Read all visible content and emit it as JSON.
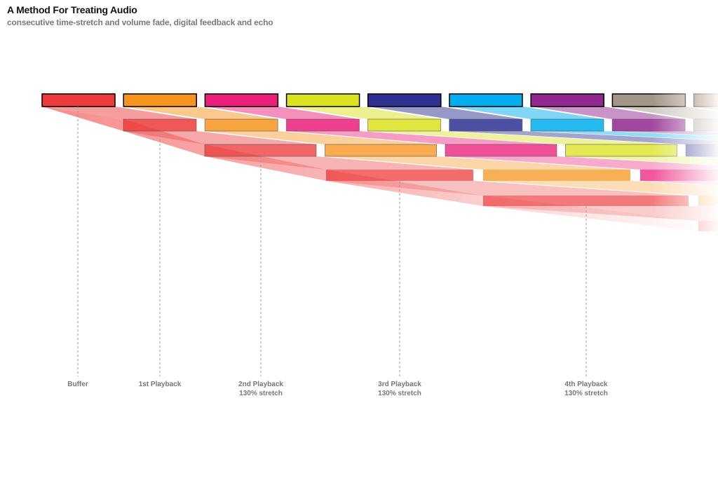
{
  "header": {
    "title": "A Method For Treating Audio",
    "subtitle": "consecutive time-stretch and volume fade, digital feedback and echo"
  },
  "stages": [
    {
      "lines": [
        "Buffer"
      ]
    },
    {
      "lines": [
        "1st Playback"
      ]
    },
    {
      "lines": [
        "2nd Playback",
        "130% stretch"
      ]
    },
    {
      "lines": [
        "3rd Playback",
        "130% stretch"
      ]
    },
    {
      "lines": [
        "4th Playback",
        "130% stretch"
      ]
    }
  ],
  "colors": {
    "buffer": [
      "#ed3b3b",
      "#f7941d",
      "#ec1f7b",
      "#dbe21f",
      "#2e3192",
      "#00aeef",
      "#92278f",
      "#a39588",
      "#8b5e3c"
    ],
    "stroke": "#000000",
    "wedge": "#f04e4e",
    "guide": "#999999",
    "label": "#777777"
  }
}
